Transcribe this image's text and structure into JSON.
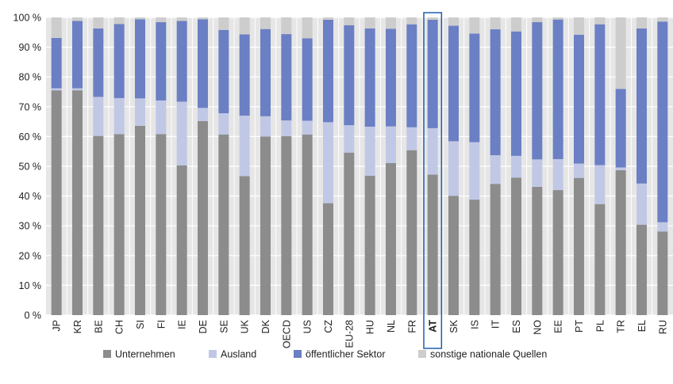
{
  "chart_data": {
    "type": "bar",
    "stacked": true,
    "ylim": [
      0,
      100
    ],
    "y_ticks": [
      "0 %",
      "10 %",
      "20 %",
      "30 %",
      "40 %",
      "50 %",
      "60 %",
      "70 %",
      "80 %",
      "90 %",
      "100 %"
    ],
    "grid": true,
    "legend_position": "bottom",
    "highlighted_category": "AT",
    "highlight_color": "#1f5fae",
    "categories": [
      "JP",
      "KR",
      "BE",
      "CH",
      "SI",
      "FI",
      "IE",
      "DE",
      "SE",
      "UK",
      "DK",
      "OECD",
      "US",
      "CZ",
      "EU-28",
      "HU",
      "NL",
      "FR",
      "AT",
      "SK",
      "IS",
      "IT",
      "ES",
      "NO",
      "EE",
      "PT",
      "PL",
      "TR",
      "EL",
      "RU"
    ],
    "series": [
      {
        "name": "Unternehmen",
        "color": "#8c8c8c",
        "values": [
          75.5,
          75.5,
          60.2,
          60.8,
          63.6,
          60.8,
          50.3,
          65.2,
          60.7,
          46.7,
          60.0,
          60.1,
          60.7,
          37.6,
          54.6,
          46.8,
          51.1,
          55.4,
          47.2,
          40.1,
          38.8,
          44.1,
          46.2,
          43.1,
          42.0,
          46.1,
          37.3,
          48.7,
          30.4,
          28.1
        ]
      },
      {
        "name": "Ausland",
        "color": "#c1c8e6",
        "values": [
          0.7,
          0.7,
          13.1,
          12.1,
          9.2,
          11.3,
          21.4,
          4.4,
          7.1,
          20.3,
          6.8,
          5.3,
          4.6,
          27.2,
          9.2,
          16.5,
          12.3,
          7.7,
          15.6,
          18.3,
          19.3,
          9.6,
          7.3,
          9.2,
          10.4,
          4.8,
          13.1,
          0.9,
          13.8,
          3.1
        ]
      },
      {
        "name": "öffentlicher Sektor",
        "color": "#6b7fc4",
        "values": [
          16.9,
          22.6,
          23.0,
          24.9,
          26.6,
          26.3,
          27.1,
          29.8,
          28.0,
          27.3,
          29.3,
          29.0,
          27.7,
          34.4,
          33.6,
          33.0,
          32.8,
          34.6,
          36.4,
          38.8,
          36.5,
          42.3,
          41.8,
          46.1,
          46.9,
          43.3,
          47.3,
          26.4,
          52.1,
          67.4
        ]
      },
      {
        "name": "sonstige nationale Quellen",
        "color": "#cdcdcd",
        "values": [
          6.9,
          1.2,
          3.7,
          2.2,
          0.6,
          1.6,
          1.2,
          0.6,
          4.2,
          5.7,
          3.9,
          5.6,
          7.0,
          0.8,
          2.6,
          3.7,
          3.8,
          2.3,
          0.8,
          2.8,
          5.4,
          4.0,
          4.7,
          1.6,
          0.7,
          5.8,
          2.3,
          24.0,
          3.7,
          1.4
        ]
      }
    ]
  }
}
